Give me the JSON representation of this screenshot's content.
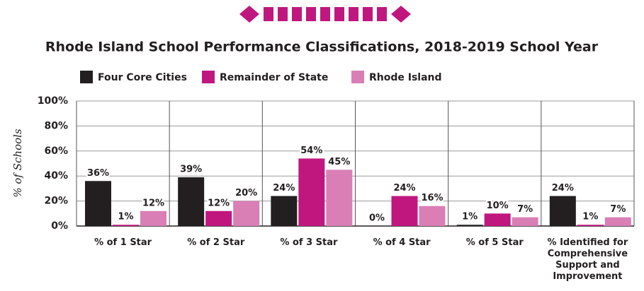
{
  "chart_data": {
    "type": "bar",
    "title": "Rhode Island School Performance Classifications, 2018-2019 School Year",
    "y_label": "% of Schools",
    "categories": [
      "% of 1 Star",
      "% of 2 Star",
      "% of 3 Star",
      "% of 4 Star",
      "% of 5 Star",
      "% Identified for Comprehensive Support and Improvement"
    ],
    "series": [
      {
        "name": "Four Core Cities",
        "color": "#231f20",
        "values": [
          36,
          39,
          24,
          0,
          1,
          24
        ],
        "value_labels": [
          "36%",
          "39%",
          "24%",
          "0%",
          "1%",
          "24%"
        ]
      },
      {
        "name": "Remainder of State",
        "color": "#c0177f",
        "values": [
          1,
          12,
          54,
          24,
          10,
          1
        ],
        "value_labels": [
          "1%",
          "12%",
          "54%",
          "24%",
          "10%",
          "1%"
        ]
      },
      {
        "name": "Rhode Island",
        "color": "#d97fb5",
        "values": [
          12,
          20,
          45,
          16,
          7,
          7
        ],
        "value_labels": [
          "12%",
          "20%",
          "45%",
          "16%",
          "7%",
          "7%"
        ]
      }
    ],
    "ylim": [
      0,
      100
    ],
    "yticks": [
      {
        "value": 0,
        "label": "0%"
      },
      {
        "value": 20,
        "label": "20%"
      },
      {
        "value": 40,
        "label": "40%"
      },
      {
        "value": 60,
        "label": "60%"
      },
      {
        "value": 80,
        "label": "80%"
      },
      {
        "value": 100,
        "label": "100%"
      }
    ],
    "grid": true,
    "legend": "top"
  }
}
